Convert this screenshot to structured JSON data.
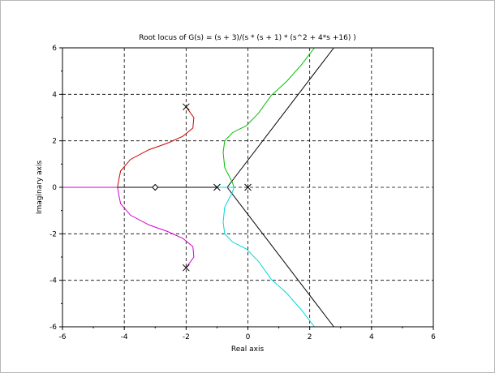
{
  "chart_data": {
    "type": "line",
    "title": "Root locus of G(s) = (s + 3)/(s * (s + 1) * (s^2 + 4*s +16) )",
    "xlabel": "Real axis",
    "ylabel": "Imaginary axis",
    "xlim": [
      -6,
      6
    ],
    "ylim": [
      -6,
      6
    ],
    "x_ticks": [
      -6,
      -4,
      -2,
      0,
      2,
      4,
      6
    ],
    "y_ticks": [
      -6,
      -4,
      -2,
      0,
      2,
      4,
      6
    ],
    "grid": true,
    "grid_style": "dashed",
    "poles": [
      [
        0,
        0
      ],
      [
        -1,
        0
      ],
      [
        -2,
        3.46
      ],
      [
        -2,
        -3.46
      ]
    ],
    "zeros": [
      [
        -3,
        0
      ]
    ],
    "asymptotes": {
      "color": "#000000",
      "lines": [
        [
          [
            -0.67,
            0
          ],
          [
            2.78,
            6
          ]
        ],
        [
          [
            -0.67,
            0
          ],
          [
            2.78,
            -6
          ]
        ],
        [
          [
            -6,
            0
          ],
          [
            -3,
            0
          ]
        ],
        [
          [
            -3,
            0
          ],
          [
            -0.67,
            0
          ]
        ]
      ]
    },
    "series": [
      {
        "color": "#d00000",
        "x": [
          -2,
          -1.75,
          -1.78,
          -2.1,
          -2.6,
          -3.2,
          -3.8,
          -4.12,
          -4.18,
          -4.22
        ],
        "y": [
          3.46,
          3.0,
          2.55,
          2.2,
          1.9,
          1.62,
          1.2,
          0.7,
          0.3,
          0
        ]
      },
      {
        "color": "#d000d0",
        "x": [
          -2,
          -1.75,
          -1.78,
          -2.1,
          -2.6,
          -3.2,
          -3.8,
          -4.12,
          -4.18,
          -4.22,
          -4.5,
          -5.5,
          -6
        ],
        "y": [
          -3.46,
          -3.0,
          -2.55,
          -2.2,
          -1.9,
          -1.62,
          -1.2,
          -0.7,
          -0.3,
          0,
          0,
          0,
          0
        ]
      },
      {
        "color": "#000000",
        "x": [
          -4.22,
          -3.0
        ],
        "y": [
          0,
          0
        ]
      },
      {
        "color": "#00c000",
        "x": [
          -1.0,
          -0.9,
          -0.82,
          -0.67,
          -0.45,
          -0.5,
          -0.75,
          -0.8,
          -0.75,
          -0.5,
          -0.05,
          0.35,
          0.75,
          1.25,
          1.75,
          2.15
        ],
        "y": [
          0,
          0,
          0,
          0,
          0,
          0.2,
          0.85,
          1.5,
          2.0,
          2.35,
          2.65,
          3.2,
          3.95,
          4.55,
          5.3,
          6.0
        ]
      },
      {
        "color": "#00d8d8",
        "x": [
          -1.0,
          -0.9,
          -0.82,
          -0.67,
          -0.45,
          -0.5,
          -0.75,
          -0.8,
          -0.75,
          -0.5,
          -0.05,
          0.35,
          0.75,
          1.25,
          1.75,
          2.15
        ],
        "y": [
          0,
          0,
          0,
          0,
          0,
          -0.2,
          -0.85,
          -1.5,
          -2.0,
          -2.35,
          -2.65,
          -3.2,
          -3.95,
          -4.55,
          -5.3,
          -6.0
        ]
      }
    ]
  }
}
